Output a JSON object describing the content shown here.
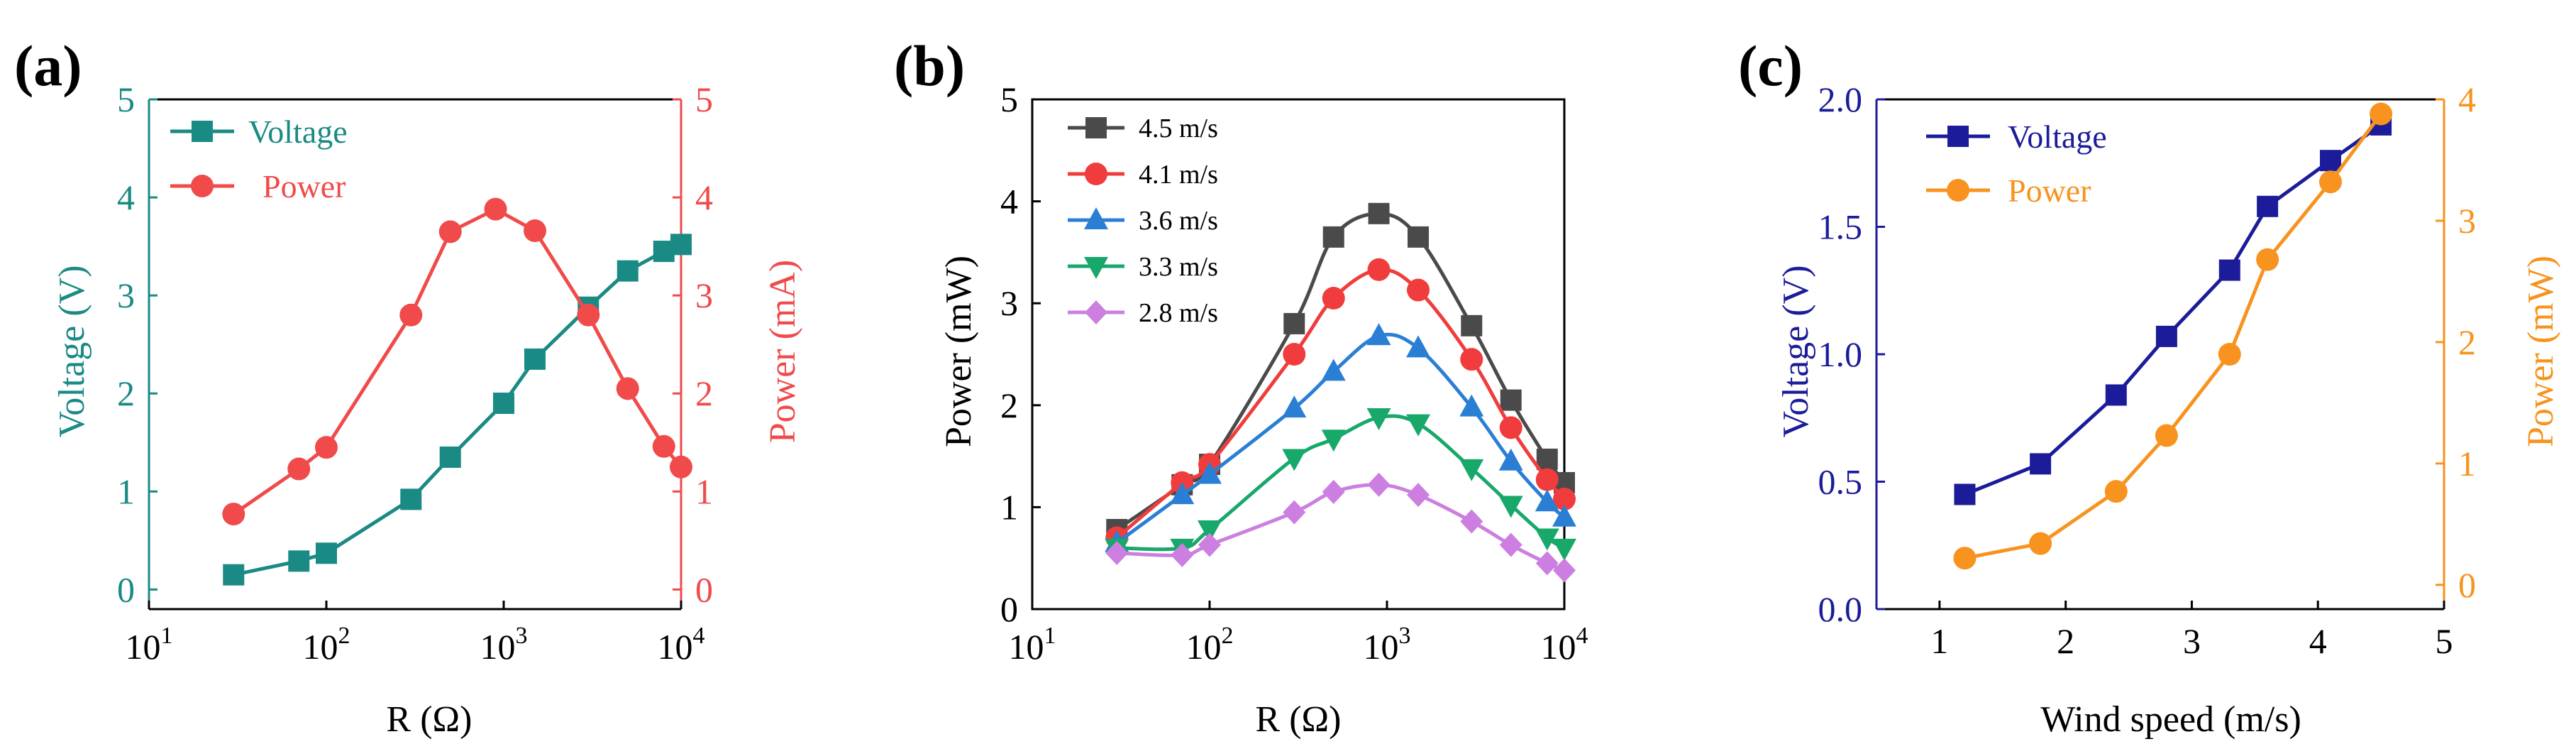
{
  "chart_data": [
    {
      "panel": "(a)",
      "type": "line",
      "x_scale": "log",
      "xlabel": "R (Ω)",
      "xlim": [
        10,
        10000
      ],
      "x_ticks": [
        "10",
        "10",
        "10",
        "10"
      ],
      "x_tick_exps": [
        "1",
        "2",
        "3",
        "4"
      ],
      "ylabel_left": "Voltage (V)",
      "ylabel_right": "Power (mA)",
      "ylim_left": [
        -0.2,
        5
      ],
      "ylim_right": [
        -0.2,
        5
      ],
      "y_ticks_left": [
        "0",
        "1",
        "2",
        "3",
        "4",
        "5"
      ],
      "y_ticks_right": [
        "0",
        "1",
        "2",
        "3",
        "4",
        "5"
      ],
      "left_color": "#1a8a84",
      "right_color": "#f04a4a",
      "series": [
        {
          "name": "Voltage",
          "axis": "left",
          "color": "#1a8a84",
          "marker": "square",
          "x": [
            30,
            70,
            100,
            300,
            500,
            1000,
            1500,
            3000,
            5000,
            8000,
            10000
          ],
          "y": [
            0.15,
            0.29,
            0.37,
            0.92,
            1.35,
            1.9,
            2.35,
            2.88,
            3.25,
            3.45,
            3.52
          ]
        },
        {
          "name": "Power",
          "axis": "right",
          "color": "#f04a4a",
          "marker": "circle",
          "x": [
            30,
            70,
            100,
            300,
            500,
            900,
            1500,
            3000,
            5000,
            8000,
            10000
          ],
          "y": [
            0.77,
            1.23,
            1.45,
            2.8,
            3.65,
            3.88,
            3.66,
            2.8,
            2.05,
            1.46,
            1.25
          ]
        }
      ]
    },
    {
      "panel": "(b)",
      "type": "line",
      "x_scale": "log",
      "xlabel": "R (Ω)",
      "xlim": [
        10,
        10000
      ],
      "x_ticks": [
        "10",
        "10",
        "10",
        "10"
      ],
      "x_tick_exps": [
        "1",
        "2",
        "3",
        "4"
      ],
      "ylabel": "Power (mW)",
      "ylim": [
        0,
        5
      ],
      "y_ticks": [
        "0",
        "1",
        "2",
        "3",
        "4",
        "5"
      ],
      "series": [
        {
          "name": "4.5 m/s",
          "color": "#4a4a4a",
          "marker": "square",
          "x": [
            30,
            70,
            100,
            300,
            500,
            900,
            1500,
            3000,
            5000,
            8000,
            10000
          ],
          "y": [
            0.78,
            1.22,
            1.42,
            2.8,
            3.65,
            3.88,
            3.65,
            2.78,
            2.05,
            1.47,
            1.24
          ]
        },
        {
          "name": "4.1 m/s",
          "color": "#f03c3c",
          "marker": "circle",
          "x": [
            30,
            70,
            100,
            300,
            500,
            900,
            1500,
            3000,
            5000,
            8000,
            10000
          ],
          "y": [
            0.7,
            1.24,
            1.42,
            2.5,
            3.05,
            3.33,
            3.13,
            2.45,
            1.78,
            1.27,
            1.08
          ]
        },
        {
          "name": "3.6 m/s",
          "color": "#2a7fd4",
          "marker": "triangle-up",
          "x": [
            30,
            70,
            100,
            300,
            500,
            900,
            1500,
            3000,
            5000,
            8000,
            10000
          ],
          "y": [
            0.65,
            1.12,
            1.32,
            1.97,
            2.33,
            2.68,
            2.56,
            1.98,
            1.45,
            1.05,
            0.9
          ]
        },
        {
          "name": "3.3 m/s",
          "color": "#17a86a",
          "marker": "triangle-down",
          "x": [
            30,
            70,
            100,
            300,
            500,
            900,
            1500,
            3000,
            5000,
            8000,
            10000
          ],
          "y": [
            0.6,
            0.6,
            0.78,
            1.48,
            1.67,
            1.88,
            1.82,
            1.38,
            1.02,
            0.7,
            0.6
          ]
        },
        {
          "name": "2.8 m/s",
          "color": "#cc7fe0",
          "marker": "diamond",
          "x": [
            30,
            70,
            100,
            300,
            500,
            900,
            1500,
            3000,
            5000,
            8000,
            10000
          ],
          "y": [
            0.55,
            0.53,
            0.63,
            0.95,
            1.15,
            1.22,
            1.12,
            0.86,
            0.63,
            0.45,
            0.38
          ]
        }
      ]
    },
    {
      "panel": "(c)",
      "type": "line",
      "x_scale": "linear",
      "xlabel": "Wind speed (m/s)",
      "xlim": [
        0.5,
        5
      ],
      "x_ticks": [
        "1",
        "2",
        "3",
        "4",
        "5"
      ],
      "ylabel_left": "Voltage (V)",
      "ylabel_right": "Power (mW)",
      "ylim_left": [
        0,
        2.0
      ],
      "ylim_right": [
        -0.2,
        4.0
      ],
      "y_ticks_left": [
        "0.0",
        "0.5",
        "1.0",
        "1.5",
        "2.0"
      ],
      "y_ticks_right": [
        "0",
        "1",
        "2",
        "3",
        "4"
      ],
      "left_color": "#1c1c9a",
      "right_color": "#f7931e",
      "series": [
        {
          "name": "Voltage",
          "axis": "left",
          "color": "#1c1c9a",
          "marker": "square",
          "x": [
            1.2,
            1.8,
            2.4,
            2.8,
            3.3,
            3.6,
            4.1,
            4.5
          ],
          "y": [
            0.45,
            0.57,
            0.84,
            1.07,
            1.33,
            1.58,
            1.76,
            1.9
          ]
        },
        {
          "name": "Power",
          "axis": "right",
          "color": "#f7931e",
          "marker": "circle",
          "x": [
            1.2,
            1.8,
            2.4,
            2.8,
            3.3,
            3.6,
            4.1,
            4.5
          ],
          "y": [
            0.22,
            0.34,
            0.77,
            1.23,
            1.9,
            2.68,
            3.32,
            3.88
          ]
        }
      ]
    }
  ]
}
